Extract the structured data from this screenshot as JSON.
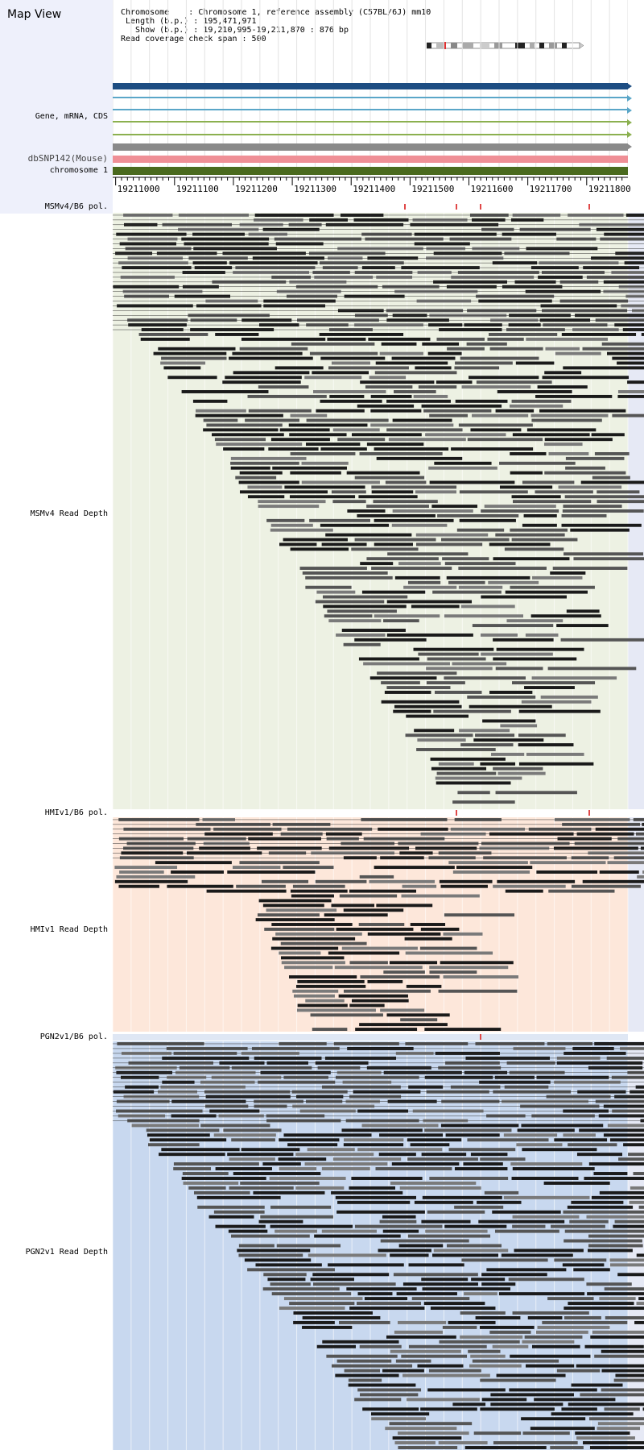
{
  "page": {
    "title": "Map View"
  },
  "info": {
    "chromosome_line": "Chromosome    : Chromosome 1, reference assembly (C57BL/6J) mm10",
    "length_line": " Length (b.p.) : 195,471,971",
    "show_line": "   Show (b.p.) : 19,210,995-19,211,870 : 876 bp",
    "coverage_line": "Read coverage check span : 500"
  },
  "labels": {
    "gene": "Gene, mRNA, CDS",
    "dbsnp": "dbSNP142(Mouse)",
    "chrom": "chromosome 1",
    "msm_pol": "MSMv4/B6 pol.",
    "msm_depth": "MSMv4 Read Depth",
    "hmi_pol": "HMIv1/B6 pol.",
    "hmi_depth": "HMIv1 Read Depth",
    "pgn_pol": "PGN2v1/B6 pol.",
    "pgn_depth": "PGN2v1 Read Depth"
  },
  "ruler": {
    "ticks": [
      "19211000",
      "19211100",
      "19211200",
      "19211300",
      "19211400",
      "19211500",
      "19211600",
      "19211700",
      "19211800"
    ],
    "start_bp": 19210995,
    "end_bp": 19211870
  },
  "colors": {
    "gene_main": "#1d4d82",
    "mrna": "#5aa6c8",
    "cds": "#8bb04f",
    "gray_track": "#8a8a8a",
    "snp": "#ef8f96",
    "chrom": "#4a6a1e",
    "msm_bg": "#edf1e3",
    "hmi_bg": "#fde7da",
    "pgn_bg": "#c8d8ef",
    "pol_mark": "#e04848"
  },
  "polymorphisms": {
    "msm": [
      19211490,
      19211577,
      19211618,
      19211803
    ],
    "hmi": [
      19211577,
      19211803
    ],
    "pgn": [
      19211618
    ]
  },
  "tracks": [
    {
      "name": "gene-track-main",
      "color_key": "gene_main"
    },
    {
      "name": "mrna-track-1",
      "color_key": "mrna"
    },
    {
      "name": "mrna-track-2",
      "color_key": "mrna"
    },
    {
      "name": "cds-track-1",
      "color_key": "cds"
    },
    {
      "name": "cds-track-2",
      "color_key": "cds"
    },
    {
      "name": "gray-track",
      "color_key": "gray_track"
    }
  ]
}
